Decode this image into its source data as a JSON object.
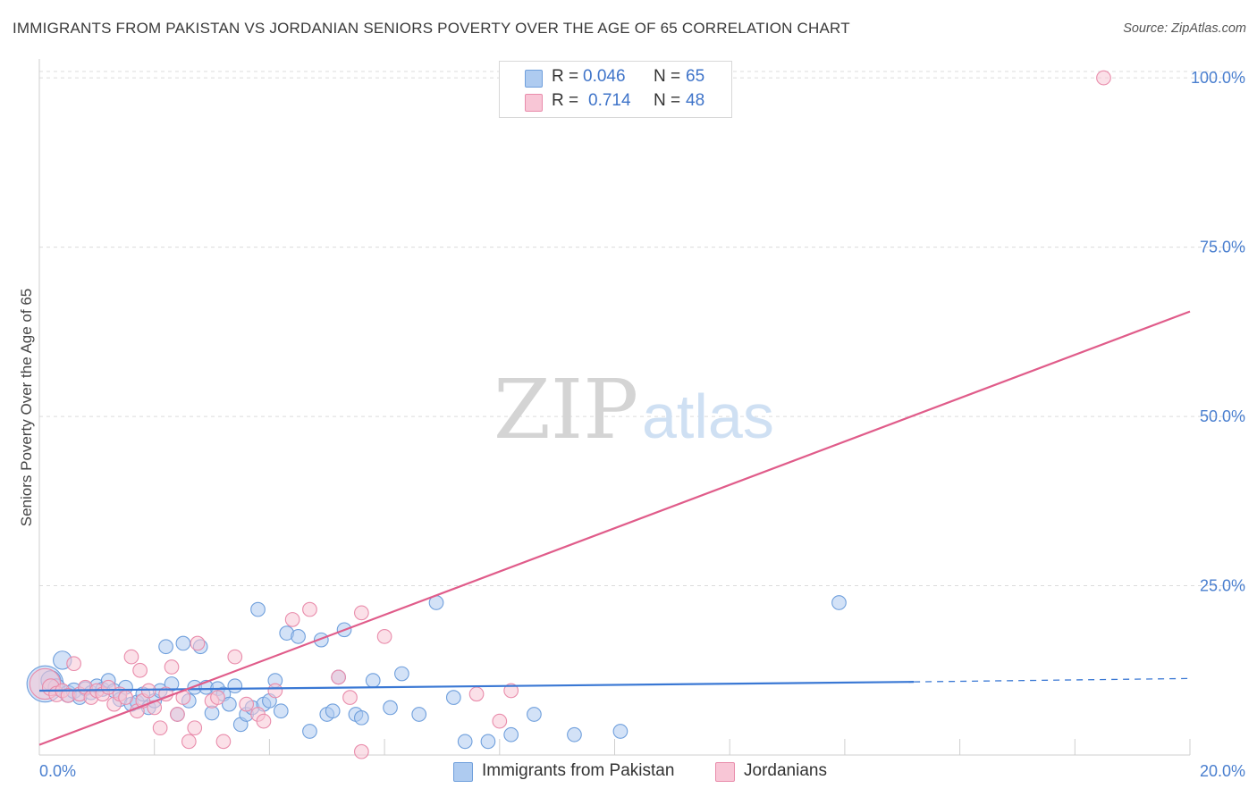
{
  "header": {
    "title": "IMMIGRANTS FROM PAKISTAN VS JORDANIAN SENIORS POVERTY OVER THE AGE OF 65 CORRELATION CHART",
    "source": "Source: ZipAtlas.com"
  },
  "watermark": {
    "zip": "ZIP",
    "atlas": "atlas"
  },
  "legend": {
    "rows": [
      {
        "r_label": "R =",
        "r_value": "0.046",
        "n_label": "N =",
        "n_value": "65",
        "color": "#aecbf0",
        "border": "#6f9fdc"
      },
      {
        "r_label": "R =",
        "r_value": "0.714",
        "n_label": "N =",
        "n_value": "48",
        "color": "#f8c6d6",
        "border": "#e98cab"
      }
    ]
  },
  "bottom_legend": {
    "items": [
      {
        "label": "Immigrants from Pakistan",
        "color": "#aecbf0",
        "border": "#6f9fdc"
      },
      {
        "label": "Jordanians",
        "color": "#f8c6d6",
        "border": "#e98cab"
      }
    ]
  },
  "chart_data": {
    "type": "scatter",
    "title": "IMMIGRANTS FROM PAKISTAN VS JORDANIAN SENIORS POVERTY OVER THE AGE OF 65 CORRELATION CHART",
    "xlabel": "",
    "ylabel": "Seniors Poverty Over the Age of 65",
    "xlim": [
      0,
      20
    ],
    "ylim": [
      0,
      102
    ],
    "x_tick_labels": [
      "0.0%",
      "20.0%"
    ],
    "y_ticks": [
      25,
      50,
      75,
      100
    ],
    "y_tick_labels": [
      "25.0%",
      "50.0%",
      "75.0%",
      "100.0%"
    ],
    "grid": true,
    "series": [
      {
        "name": "Immigrants from Pakistan",
        "color": "#6f9fdc",
        "fill": "#aecbf0",
        "trend_line": {
          "x": [
            0,
            15.2
          ],
          "y": [
            9.5,
            10.8
          ],
          "dashed_extension": {
            "x": [
              15.2,
              20
            ],
            "y": [
              10.8,
              11.3
            ]
          }
        },
        "points": [
          {
            "x": 0.1,
            "y": 10.5,
            "s": 26
          },
          {
            "x": 0.2,
            "y": 11.0,
            "s": 14
          },
          {
            "x": 0.3,
            "y": 10.0,
            "s": 12
          },
          {
            "x": 0.4,
            "y": 14.0,
            "s": 13
          },
          {
            "x": 0.5,
            "y": 9.0,
            "s": 12
          },
          {
            "x": 0.6,
            "y": 9.5,
            "s": 11
          },
          {
            "x": 0.7,
            "y": 8.5,
            "s": 10
          },
          {
            "x": 0.8,
            "y": 9.8,
            "s": 10
          },
          {
            "x": 0.9,
            "y": 9.2,
            "s": 10
          },
          {
            "x": 1.0,
            "y": 10.2,
            "s": 10
          },
          {
            "x": 1.1,
            "y": 9.7,
            "s": 10
          },
          {
            "x": 1.2,
            "y": 11.0,
            "s": 10
          },
          {
            "x": 1.3,
            "y": 9.5,
            "s": 10
          },
          {
            "x": 1.4,
            "y": 8.2,
            "s": 10
          },
          {
            "x": 1.5,
            "y": 10.0,
            "s": 10
          },
          {
            "x": 1.6,
            "y": 7.5,
            "s": 10
          },
          {
            "x": 1.7,
            "y": 7.8,
            "s": 10
          },
          {
            "x": 1.8,
            "y": 9.0,
            "s": 10
          },
          {
            "x": 1.9,
            "y": 7.0,
            "s": 10
          },
          {
            "x": 2.0,
            "y": 8.0,
            "s": 10
          },
          {
            "x": 2.1,
            "y": 9.5,
            "s": 10
          },
          {
            "x": 2.2,
            "y": 16.0,
            "s": 10
          },
          {
            "x": 2.3,
            "y": 10.5,
            "s": 10
          },
          {
            "x": 2.4,
            "y": 6.0,
            "s": 10
          },
          {
            "x": 2.5,
            "y": 16.5,
            "s": 10
          },
          {
            "x": 2.6,
            "y": 8.0,
            "s": 10
          },
          {
            "x": 2.7,
            "y": 10.0,
            "s": 10
          },
          {
            "x": 2.8,
            "y": 16.0,
            "s": 10
          },
          {
            "x": 2.9,
            "y": 10.0,
            "s": 10
          },
          {
            "x": 3.0,
            "y": 6.2,
            "s": 10
          },
          {
            "x": 3.1,
            "y": 9.8,
            "s": 10
          },
          {
            "x": 3.2,
            "y": 9.0,
            "s": 10
          },
          {
            "x": 3.3,
            "y": 7.5,
            "s": 10
          },
          {
            "x": 3.4,
            "y": 10.2,
            "s": 10
          },
          {
            "x": 3.5,
            "y": 4.5,
            "s": 10
          },
          {
            "x": 3.6,
            "y": 6.0,
            "s": 10
          },
          {
            "x": 3.7,
            "y": 7.0,
            "s": 10
          },
          {
            "x": 3.8,
            "y": 21.5,
            "s": 10
          },
          {
            "x": 3.9,
            "y": 7.5,
            "s": 10
          },
          {
            "x": 4.0,
            "y": 8.0,
            "s": 10
          },
          {
            "x": 4.1,
            "y": 11.0,
            "s": 10
          },
          {
            "x": 4.2,
            "y": 6.5,
            "s": 10
          },
          {
            "x": 4.3,
            "y": 18.0,
            "s": 10
          },
          {
            "x": 4.5,
            "y": 17.5,
            "s": 10
          },
          {
            "x": 4.7,
            "y": 3.5,
            "s": 10
          },
          {
            "x": 4.9,
            "y": 17.0,
            "s": 10
          },
          {
            "x": 5.0,
            "y": 6.0,
            "s": 10
          },
          {
            "x": 5.1,
            "y": 6.5,
            "s": 10
          },
          {
            "x": 5.2,
            "y": 11.5,
            "s": 10
          },
          {
            "x": 5.3,
            "y": 18.5,
            "s": 10
          },
          {
            "x": 5.5,
            "y": 6.0,
            "s": 10
          },
          {
            "x": 5.6,
            "y": 5.5,
            "s": 10
          },
          {
            "x": 5.8,
            "y": 11.0,
            "s": 10
          },
          {
            "x": 6.1,
            "y": 7.0,
            "s": 10
          },
          {
            "x": 6.3,
            "y": 12.0,
            "s": 10
          },
          {
            "x": 6.6,
            "y": 6.0,
            "s": 10
          },
          {
            "x": 6.9,
            "y": 22.5,
            "s": 10
          },
          {
            "x": 7.2,
            "y": 8.5,
            "s": 10
          },
          {
            "x": 7.4,
            "y": 2.0,
            "s": 10
          },
          {
            "x": 7.8,
            "y": 2.0,
            "s": 10
          },
          {
            "x": 8.2,
            "y": 3.0,
            "s": 10
          },
          {
            "x": 8.6,
            "y": 6.0,
            "s": 10
          },
          {
            "x": 9.3,
            "y": 3.0,
            "s": 10
          },
          {
            "x": 10.1,
            "y": 3.5,
            "s": 10
          },
          {
            "x": 13.9,
            "y": 22.5,
            "s": 10
          }
        ]
      },
      {
        "name": "Jordanians",
        "color": "#e05c8a",
        "fill": "#f8c6d6",
        "trend_line": {
          "x": [
            0,
            20
          ],
          "y": [
            1.5,
            65.5
          ]
        },
        "points": [
          {
            "x": 0.1,
            "y": 10.5,
            "s": 22
          },
          {
            "x": 0.2,
            "y": 10.0,
            "s": 12
          },
          {
            "x": 0.3,
            "y": 9.0,
            "s": 11
          },
          {
            "x": 0.4,
            "y": 9.5,
            "s": 10
          },
          {
            "x": 0.5,
            "y": 8.8,
            "s": 10
          },
          {
            "x": 0.6,
            "y": 13.5,
            "s": 10
          },
          {
            "x": 0.7,
            "y": 9.0,
            "s": 10
          },
          {
            "x": 0.8,
            "y": 10.0,
            "s": 10
          },
          {
            "x": 0.9,
            "y": 8.5,
            "s": 10
          },
          {
            "x": 1.0,
            "y": 9.5,
            "s": 10
          },
          {
            "x": 1.1,
            "y": 9.0,
            "s": 10
          },
          {
            "x": 1.2,
            "y": 10.0,
            "s": 10
          },
          {
            "x": 1.3,
            "y": 7.5,
            "s": 10
          },
          {
            "x": 1.4,
            "y": 9.0,
            "s": 10
          },
          {
            "x": 1.5,
            "y": 8.5,
            "s": 10
          },
          {
            "x": 1.6,
            "y": 14.5,
            "s": 10
          },
          {
            "x": 1.7,
            "y": 6.5,
            "s": 10
          },
          {
            "x": 1.75,
            "y": 12.5,
            "s": 10
          },
          {
            "x": 1.8,
            "y": 8.0,
            "s": 10
          },
          {
            "x": 1.9,
            "y": 9.5,
            "s": 10
          },
          {
            "x": 2.0,
            "y": 7.0,
            "s": 10
          },
          {
            "x": 2.1,
            "y": 4.0,
            "s": 10
          },
          {
            "x": 2.2,
            "y": 9.0,
            "s": 10
          },
          {
            "x": 2.3,
            "y": 13.0,
            "s": 10
          },
          {
            "x": 2.4,
            "y": 6.0,
            "s": 10
          },
          {
            "x": 2.5,
            "y": 8.5,
            "s": 10
          },
          {
            "x": 2.6,
            "y": 2.0,
            "s": 10
          },
          {
            "x": 2.7,
            "y": 4.0,
            "s": 10
          },
          {
            "x": 2.75,
            "y": 16.5,
            "s": 10
          },
          {
            "x": 3.0,
            "y": 8.0,
            "s": 10
          },
          {
            "x": 3.1,
            "y": 8.5,
            "s": 10
          },
          {
            "x": 3.2,
            "y": 2.0,
            "s": 10
          },
          {
            "x": 3.4,
            "y": 14.5,
            "s": 10
          },
          {
            "x": 3.6,
            "y": 7.5,
            "s": 10
          },
          {
            "x": 3.8,
            "y": 6.0,
            "s": 10
          },
          {
            "x": 3.9,
            "y": 5.0,
            "s": 10
          },
          {
            "x": 4.1,
            "y": 9.5,
            "s": 10
          },
          {
            "x": 4.4,
            "y": 20.0,
            "s": 10
          },
          {
            "x": 4.7,
            "y": 21.5,
            "s": 10
          },
          {
            "x": 5.2,
            "y": 11.5,
            "s": 10
          },
          {
            "x": 5.4,
            "y": 8.5,
            "s": 10
          },
          {
            "x": 5.6,
            "y": 0.5,
            "s": 10
          },
          {
            "x": 5.6,
            "y": 21.0,
            "s": 10
          },
          {
            "x": 6.0,
            "y": 17.5,
            "s": 10
          },
          {
            "x": 7.6,
            "y": 9.0,
            "s": 10
          },
          {
            "x": 8.0,
            "y": 5.0,
            "s": 10
          },
          {
            "x": 8.2,
            "y": 9.5,
            "s": 10
          },
          {
            "x": 18.5,
            "y": 100.0,
            "s": 10
          }
        ]
      }
    ]
  }
}
